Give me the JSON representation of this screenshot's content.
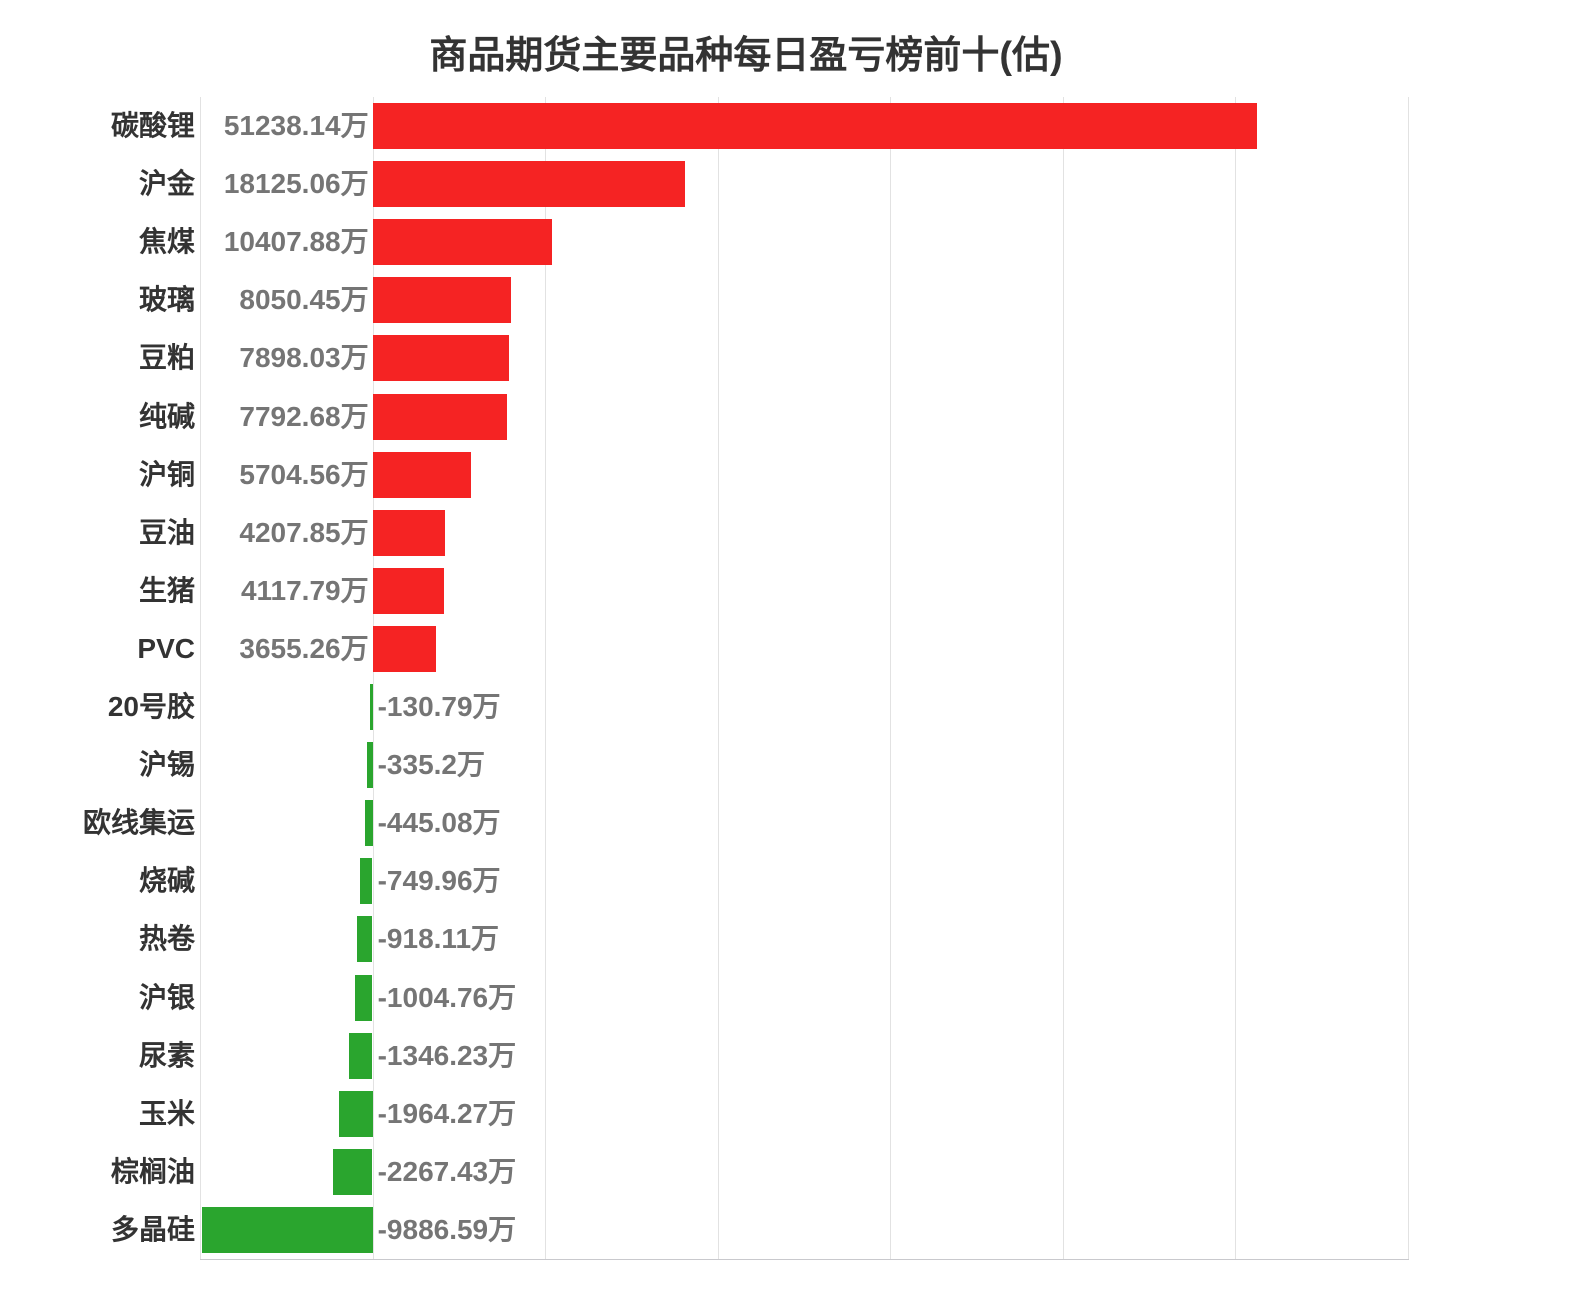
{
  "title": "商品期货主要品种每日盈亏榜前十(估)",
  "colors": {
    "positive": "#f52323",
    "negative": "#2aa52e",
    "grid": "#e2e2e2",
    "axis": "#c9c9cd",
    "category_label": "#333333",
    "value_label": "#757575",
    "title": "#333333"
  },
  "chart_data": {
    "type": "bar",
    "orientation": "horizontal",
    "title": "商品期货主要品种每日盈亏榜前十(估)",
    "unit": "万",
    "categories": [
      "碳酸锂",
      "沪金",
      "焦煤",
      "玻璃",
      "豆粕",
      "纯碱",
      "沪铜",
      "豆油",
      "生猪",
      "PVC",
      "20号胶",
      "沪锡",
      "欧线集运",
      "烧碱",
      "热卷",
      "沪银",
      "尿素",
      "玉米",
      "棕榈油",
      "多晶硅"
    ],
    "values": [
      51238.14,
      18125.06,
      10407.88,
      8050.45,
      7898.03,
      7792.68,
      5704.56,
      4207.85,
      4117.79,
      3655.26,
      -130.79,
      -335.2,
      -445.08,
      -749.96,
      -918.11,
      -1004.76,
      -1346.23,
      -1964.27,
      -2267.43,
      -9886.59
    ],
    "value_labels": [
      "51238.14万",
      "18125.06万",
      "10407.88万",
      "8050.45万",
      "7898.03万",
      "7792.68万",
      "5704.56万",
      "4207.85万",
      "4117.79万",
      "3655.26万",
      "-130.79万",
      "-335.2万",
      "-445.08万",
      "-749.96万",
      "-918.11万",
      "-1004.76万",
      "-1346.23万",
      "-1964.27万",
      "-2267.43万",
      "-9886.59万"
    ],
    "xlim": [
      -10000,
      60000
    ],
    "grid_step": 10000,
    "grid": true,
    "legend": false,
    "xlabel": "",
    "ylabel": ""
  }
}
